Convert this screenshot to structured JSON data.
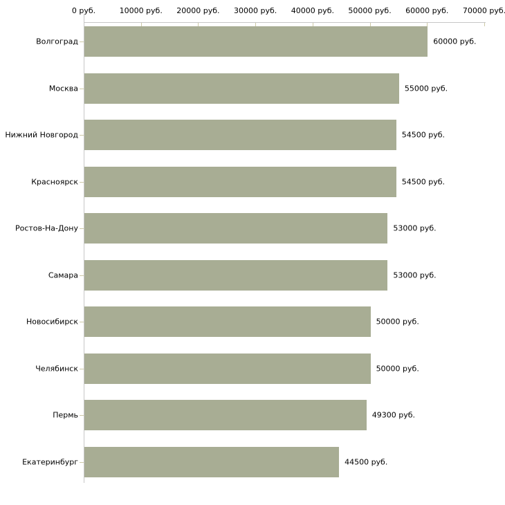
{
  "page": {
    "background_color": "#ffffff",
    "text_color": "#000000"
  },
  "chart_data": {
    "type": "bar",
    "orientation": "horizontal",
    "title": "",
    "xlabel": "",
    "ylabel": "",
    "xlim": [
      0,
      70000
    ],
    "grid": false,
    "legend": false,
    "categories": [
      "Волгоград",
      "Москва",
      "Нижний Новгород",
      "Красноярск",
      "Ростов-На-Дону",
      "Самара",
      "Новосибирск",
      "Челябинск",
      "Пермь",
      "Екатеринбург"
    ],
    "values": [
      60000,
      55000,
      54500,
      54500,
      53000,
      53000,
      50000,
      50000,
      49300,
      44500
    ],
    "value_labels": [
      "60000 руб.",
      "55000 руб.",
      "54500 руб.",
      "54500 руб.",
      "53000 руб.",
      "53000 руб.",
      "50000 руб.",
      "50000 руб.",
      "49300 руб.",
      "44500 руб."
    ],
    "x_ticks": [
      0,
      10000,
      20000,
      30000,
      40000,
      50000,
      60000,
      70000
    ],
    "x_tick_labels": [
      "0 руб.",
      "10000 руб.",
      "20000 руб.",
      "30000 руб.",
      "40000 руб.",
      "50000 руб.",
      "60000 руб.",
      "70000 руб."
    ],
    "bar_color": "#a8ad94",
    "axis_line_color": "#c6c6c6",
    "tick_mark_color": "#cdc9a6",
    "label_color": "#000000"
  }
}
